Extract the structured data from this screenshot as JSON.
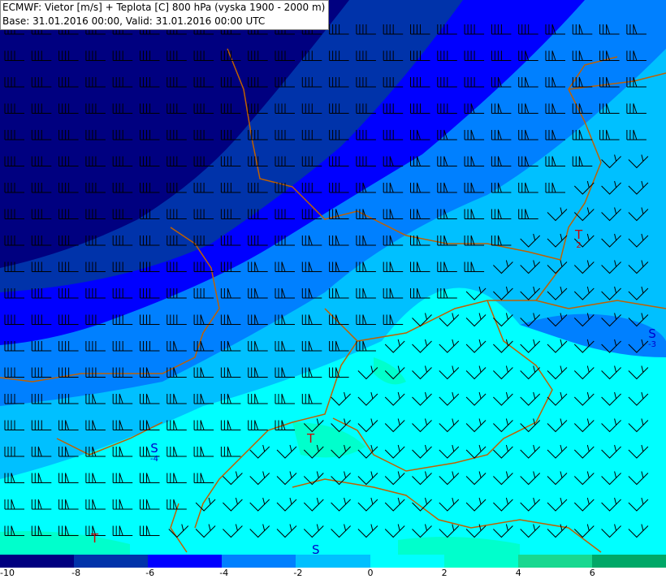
{
  "header": {
    "line1": "ECMWF: Vietor [m/s] + Teplota [C] 800 hPa (vyska 1900 - 2000 m)",
    "line2": "Base: 31.01.2016 00:00, Valid: 31.01.2016 00:00 UTC"
  },
  "colorbar": {
    "colors": [
      "#000080",
      "#0033aa",
      "#0000ff",
      "#0080ff",
      "#00c0ff",
      "#00ffff",
      "#00ffcc",
      "#18d890",
      "#00a868"
    ],
    "ticks": [
      "-10",
      "-8",
      "-6",
      "-4",
      "-2",
      "0",
      "2",
      "4",
      "6"
    ]
  },
  "labels": [
    {
      "type": "T",
      "value": "2",
      "color": "#d00000"
    },
    {
      "type": "S",
      "value": "-3",
      "color": "#0000cc"
    },
    {
      "type": "S",
      "value": "-4",
      "color": "#0000cc"
    },
    {
      "type": "T",
      "value": "",
      "color": "#d00000"
    },
    {
      "type": "T",
      "value": "",
      "color": "#d00000"
    },
    {
      "type": "S",
      "value": "",
      "color": "#0000cc"
    }
  ],
  "border_color": "#c06000"
}
